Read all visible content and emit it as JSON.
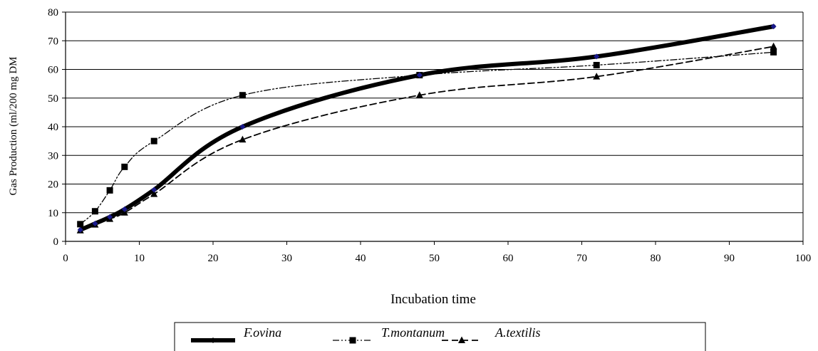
{
  "chart_data": {
    "type": "line",
    "xlabel": "Incubation time",
    "ylabel": "Gas Production (ml/200 mg DM",
    "xlim": [
      0,
      100
    ],
    "ylim": [
      0,
      80
    ],
    "x_ticks": [
      0,
      10,
      20,
      30,
      40,
      50,
      60,
      70,
      80,
      90,
      100
    ],
    "y_ticks": [
      0,
      10,
      20,
      30,
      40,
      50,
      60,
      70,
      80
    ],
    "grid": "horizontal",
    "legend_position": "bottom",
    "series": [
      {
        "name": "F.ovina",
        "style": "thick-solid",
        "marker": "diamond",
        "color": "#000000",
        "marker_color": "#1a1a8c",
        "x": [
          2,
          4,
          6,
          8,
          12,
          24,
          48,
          72,
          96
        ],
        "y": [
          4,
          6.2,
          8.5,
          11.2,
          18,
          40,
          58,
          64.5,
          75
        ]
      },
      {
        "name": "T.montanum",
        "style": "dash-dot-dot",
        "marker": "square",
        "color": "#000000",
        "x": [
          2,
          4,
          6,
          8,
          12,
          24,
          48,
          72,
          96
        ],
        "y": [
          6,
          10.5,
          17.8,
          26,
          35,
          51,
          58,
          61.5,
          66
        ]
      },
      {
        "name": "A.textilis",
        "style": "dashed",
        "marker": "triangle",
        "color": "#000000",
        "x": [
          2,
          4,
          6,
          8,
          12,
          24,
          48,
          72,
          96
        ],
        "y": [
          3.8,
          5.8,
          7.8,
          10,
          16.5,
          35.5,
          51,
          57.5,
          68
        ]
      }
    ]
  }
}
